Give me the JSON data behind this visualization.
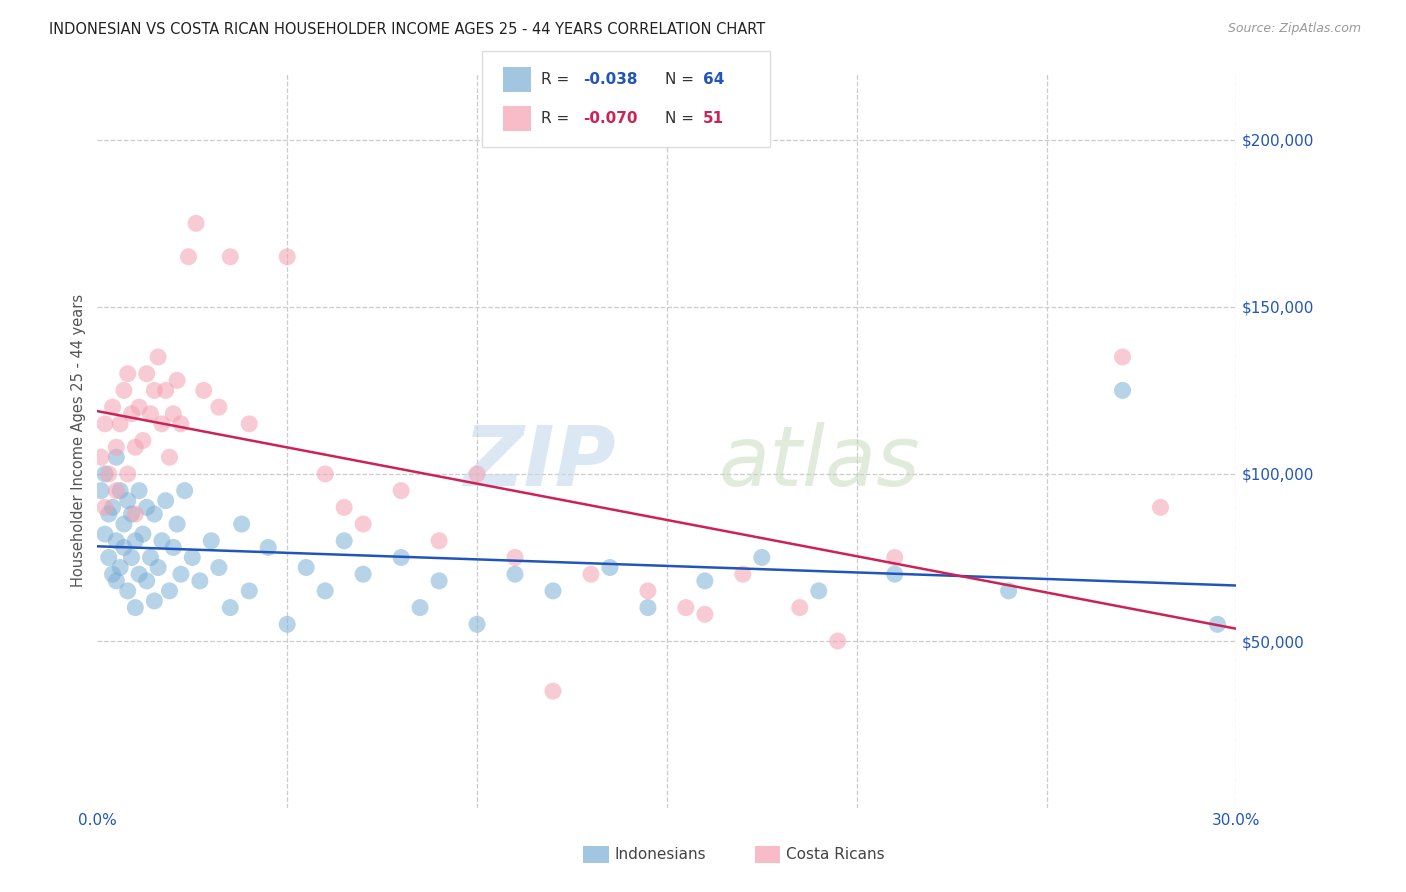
{
  "title": "INDONESIAN VS COSTA RICAN HOUSEHOLDER INCOME AGES 25 - 44 YEARS CORRELATION CHART",
  "source": "Source: ZipAtlas.com",
  "ylabel": "Householder Income Ages 25 - 44 years",
  "xlim": [
    0.0,
    0.3
  ],
  "ylim": [
    0,
    220000
  ],
  "yticks": [
    50000,
    100000,
    150000,
    200000
  ],
  "ytick_labels": [
    "$50,000",
    "$100,000",
    "$150,000",
    "$200,000"
  ],
  "blue_color": "#7bafd4",
  "pink_color": "#f4a0b0",
  "blue_line_color": "#2255bb",
  "pink_line_color": "#cc2255",
  "r_blue": -0.038,
  "r_pink": -0.07,
  "n_blue": 64,
  "n_pink": 51,
  "legend_label1": "Indonesians",
  "legend_label2": "Costa Ricans",
  "blue_x": [
    0.001,
    0.002,
    0.002,
    0.003,
    0.003,
    0.004,
    0.004,
    0.005,
    0.005,
    0.005,
    0.006,
    0.006,
    0.007,
    0.007,
    0.008,
    0.008,
    0.009,
    0.009,
    0.01,
    0.01,
    0.011,
    0.011,
    0.012,
    0.013,
    0.013,
    0.014,
    0.015,
    0.015,
    0.016,
    0.017,
    0.018,
    0.019,
    0.02,
    0.021,
    0.022,
    0.023,
    0.025,
    0.027,
    0.03,
    0.032,
    0.035,
    0.038,
    0.04,
    0.045,
    0.05,
    0.055,
    0.06,
    0.065,
    0.07,
    0.08,
    0.085,
    0.09,
    0.1,
    0.11,
    0.12,
    0.135,
    0.145,
    0.16,
    0.175,
    0.19,
    0.21,
    0.24,
    0.27,
    0.295
  ],
  "blue_y": [
    95000,
    100000,
    82000,
    75000,
    88000,
    90000,
    70000,
    105000,
    80000,
    68000,
    95000,
    72000,
    85000,
    78000,
    92000,
    65000,
    75000,
    88000,
    80000,
    60000,
    95000,
    70000,
    82000,
    90000,
    68000,
    75000,
    88000,
    62000,
    72000,
    80000,
    92000,
    65000,
    78000,
    85000,
    70000,
    95000,
    75000,
    68000,
    80000,
    72000,
    60000,
    85000,
    65000,
    78000,
    55000,
    72000,
    65000,
    80000,
    70000,
    75000,
    60000,
    68000,
    55000,
    70000,
    65000,
    72000,
    60000,
    68000,
    75000,
    65000,
    70000,
    65000,
    125000,
    55000
  ],
  "pink_x": [
    0.001,
    0.002,
    0.002,
    0.003,
    0.004,
    0.005,
    0.005,
    0.006,
    0.007,
    0.008,
    0.008,
    0.009,
    0.01,
    0.01,
    0.011,
    0.012,
    0.013,
    0.014,
    0.015,
    0.016,
    0.017,
    0.018,
    0.019,
    0.02,
    0.021,
    0.022,
    0.024,
    0.026,
    0.028,
    0.032,
    0.035,
    0.04,
    0.05,
    0.06,
    0.065,
    0.07,
    0.08,
    0.09,
    0.1,
    0.11,
    0.12,
    0.13,
    0.145,
    0.155,
    0.16,
    0.17,
    0.185,
    0.195,
    0.21,
    0.27,
    0.28
  ],
  "pink_y": [
    105000,
    115000,
    90000,
    100000,
    120000,
    108000,
    95000,
    115000,
    125000,
    130000,
    100000,
    118000,
    108000,
    88000,
    120000,
    110000,
    130000,
    118000,
    125000,
    135000,
    115000,
    125000,
    105000,
    118000,
    128000,
    115000,
    165000,
    175000,
    125000,
    120000,
    165000,
    115000,
    165000,
    100000,
    90000,
    85000,
    95000,
    80000,
    100000,
    75000,
    35000,
    70000,
    65000,
    60000,
    58000,
    70000,
    60000,
    50000,
    75000,
    135000,
    90000
  ]
}
